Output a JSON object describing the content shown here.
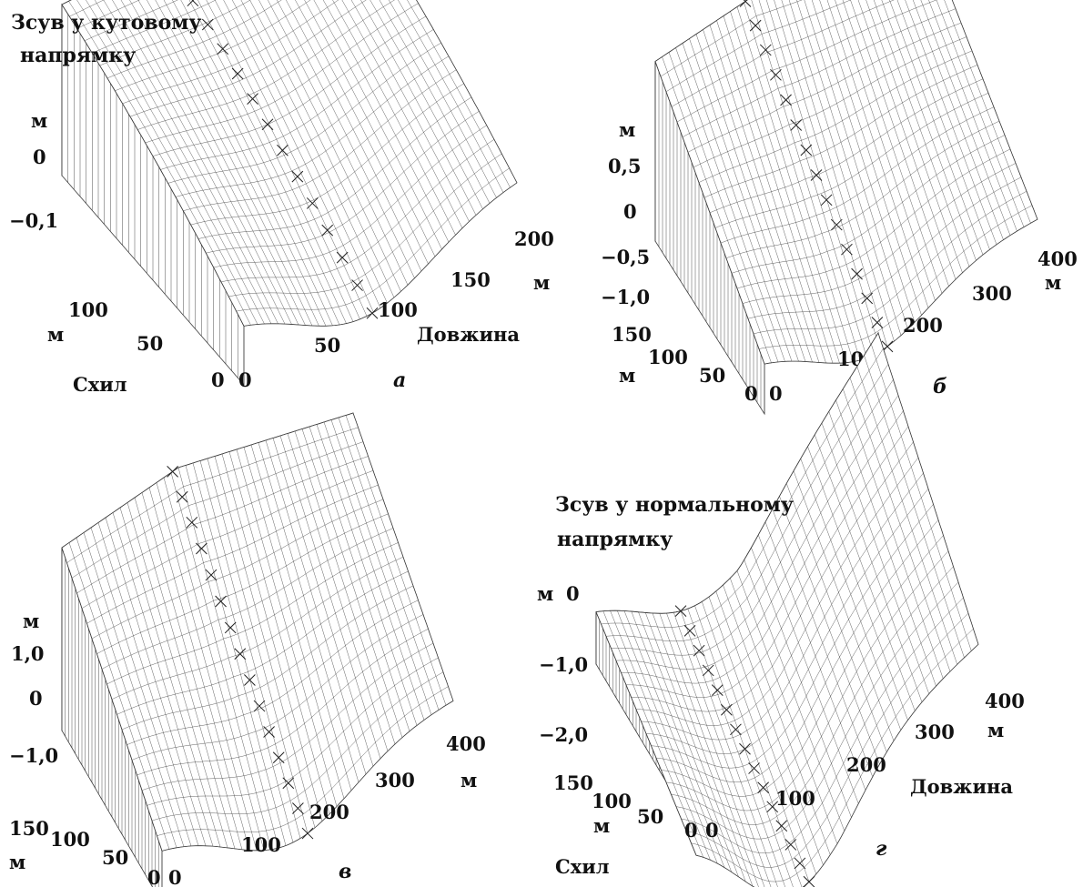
{
  "colors": {
    "line": "#3a3a3a",
    "fill": "#ffffff",
    "text": "#111111"
  },
  "panels": [
    {
      "id": "a",
      "letter": "а",
      "title": [
        "Зсув у кутовому",
        "напрямку"
      ],
      "z_unit": "м",
      "z_ticks": [
        "0",
        "−0,1"
      ],
      "slope_unit": "м",
      "slope_ticks": [
        "0",
        "50",
        "100"
      ],
      "slope_label": "Схил",
      "length_unit": "м",
      "length_ticks": [
        "0",
        "50",
        "100",
        "150",
        "200"
      ],
      "length_label": "Довжина"
    },
    {
      "id": "b",
      "letter": "б",
      "title": [],
      "z_unit": "м",
      "z_ticks": [
        "0,5",
        "0",
        "−0,5",
        "−1,0"
      ],
      "slope_unit": "м",
      "slope_ticks": [
        "0",
        "50",
        "100",
        "150"
      ],
      "slope_label": "",
      "length_unit": "м",
      "length_ticks": [
        "0",
        "100",
        "200",
        "300",
        "400"
      ],
      "length_label": ""
    },
    {
      "id": "c",
      "letter": "в",
      "title": [],
      "z_unit": "м",
      "z_ticks": [
        "1,0",
        "0",
        "−1,0"
      ],
      "slope_unit": "м",
      "slope_ticks": [
        "0",
        "50",
        "100",
        "150"
      ],
      "slope_label": "",
      "length_unit": "м",
      "length_ticks": [
        "0",
        "100",
        "200",
        "300",
        "400"
      ],
      "length_label": ""
    },
    {
      "id": "d",
      "letter": "г",
      "title": [
        "Зсув у нормальному",
        "напрямку"
      ],
      "z_unit": "м",
      "z_ticks": [
        "0",
        "−1,0",
        "−2,0"
      ],
      "slope_unit": "м",
      "slope_ticks": [
        "0",
        "50",
        "100",
        "150"
      ],
      "slope_label": "Схил",
      "length_unit": "м",
      "length_ticks": [
        "0",
        "100",
        "200",
        "300",
        "400"
      ],
      "length_label": "Довжина"
    }
  ]
}
